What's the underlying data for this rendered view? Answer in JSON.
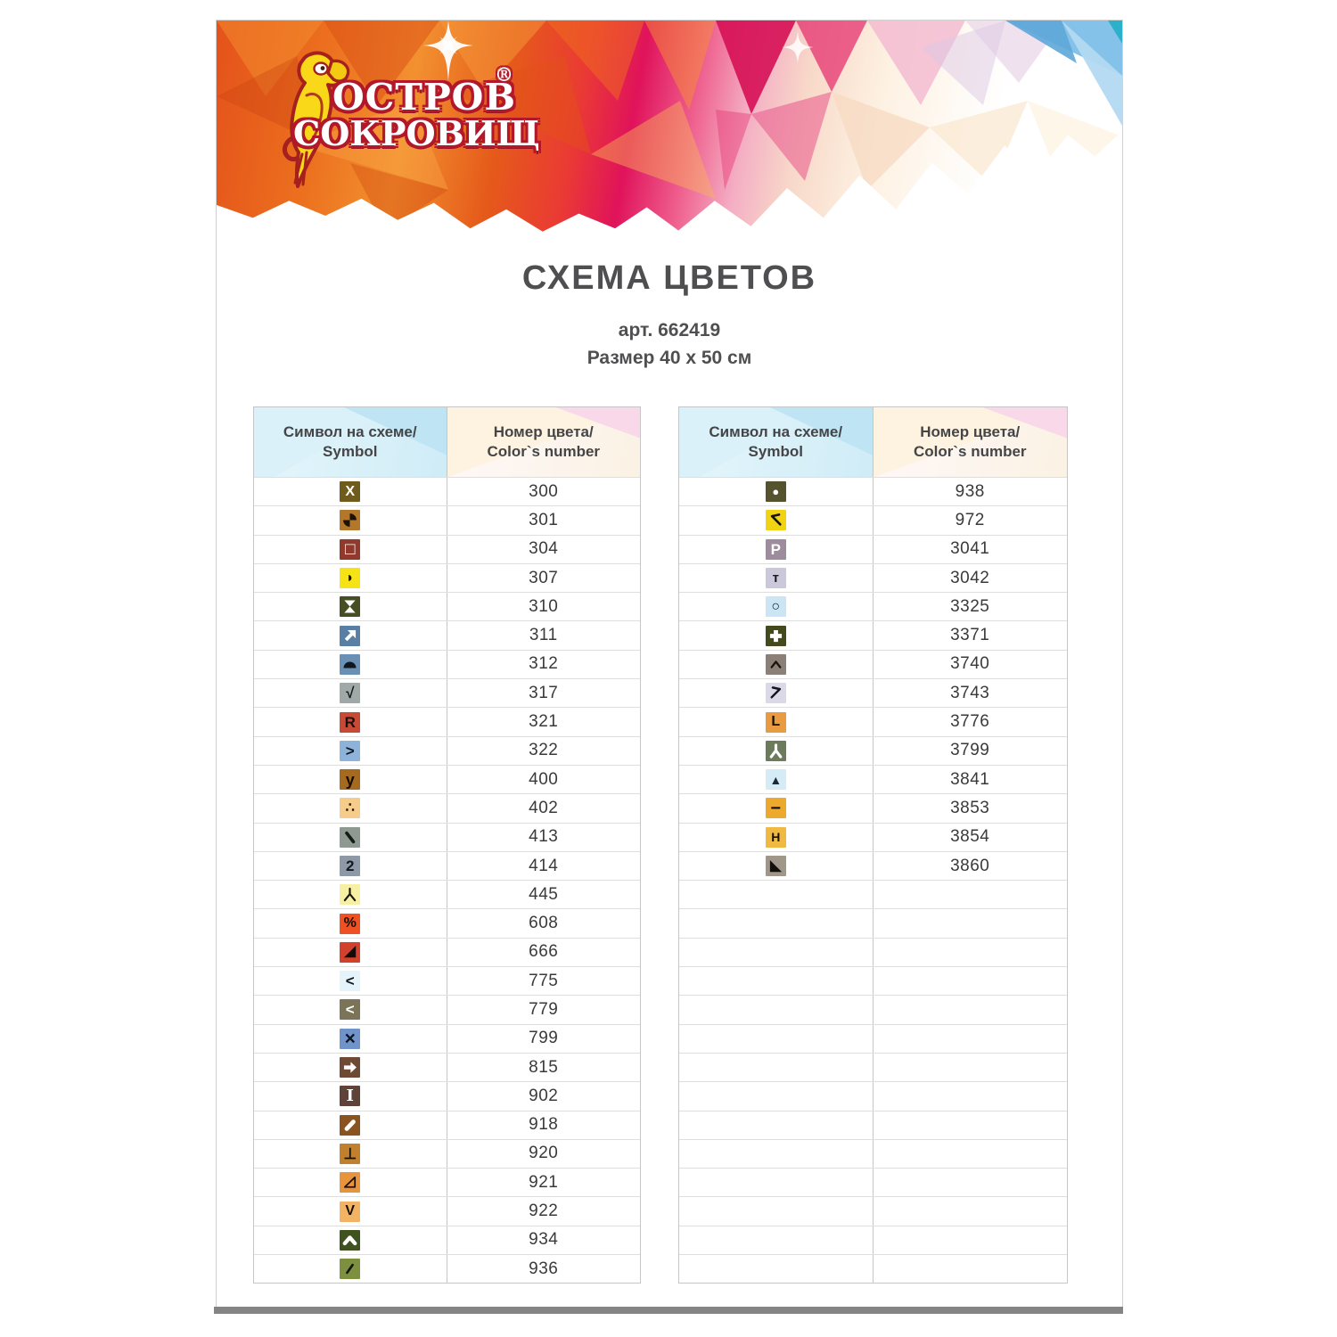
{
  "brand": {
    "name_line1": "ОСТРОВ",
    "name_line2": "СОКРОВИЩ",
    "reg_mark": "®",
    "logo_icon": "parrot-icon",
    "colors": {
      "orange": "#ec6f1e",
      "magenta": "#e0135b",
      "blue": "#85c2e9",
      "parrot_yellow": "#f8d818",
      "outline_red": "#b2182a"
    }
  },
  "page": {
    "title": "СХЕМА ЦВЕТОВ",
    "article": "арт. 662419",
    "size": "Размер 40 x 50 см"
  },
  "table_header": {
    "symbol": {
      "line1": "Символ на схеме/",
      "line2": "Symbol"
    },
    "number": {
      "line1": "Номер цвета/",
      "line2": "Color`s number"
    }
  },
  "tables": {
    "left": {
      "rows": [
        {
          "number": "300",
          "symbol": {
            "icon": "x-mark",
            "render": "text",
            "glyph": "X",
            "fg": "#ffffff",
            "bg": "#6f5c1d"
          }
        },
        {
          "number": "301",
          "symbol": {
            "icon": "pinwheel",
            "render": "svg",
            "shape": "pinwheel",
            "fg": "#1c1206",
            "bg": "#b3772c"
          }
        },
        {
          "number": "304",
          "symbol": {
            "icon": "square-outline",
            "render": "text",
            "glyph": "□",
            "fg": "#ffffff",
            "bg": "#92392e"
          }
        },
        {
          "number": "307",
          "symbol": {
            "icon": "half-circle-right",
            "render": "text",
            "glyph": "◗",
            "fg": "#181407",
            "bg": "#f5e316"
          }
        },
        {
          "number": "310",
          "symbol": {
            "icon": "hourglass",
            "render": "svg",
            "shape": "hourglass",
            "fg": "#ffffff",
            "bg": "#474e24"
          }
        },
        {
          "number": "311",
          "symbol": {
            "icon": "arrow-up-right",
            "render": "svg",
            "shape": "arrow-ne-solid",
            "fg": "#ffffff",
            "bg": "#597fa4"
          }
        },
        {
          "number": "312",
          "symbol": {
            "icon": "half-circle-up",
            "render": "svg",
            "shape": "dome",
            "fg": "#10181d",
            "bg": "#6a90b4"
          }
        },
        {
          "number": "317",
          "symbol": {
            "icon": "check-mark",
            "render": "text",
            "glyph": "√",
            "fg": "#14181a",
            "bg": "#a0a8a8"
          }
        },
        {
          "number": "321",
          "symbol": {
            "icon": "letter-r",
            "render": "text",
            "glyph": "R",
            "fg": "#1c0f0c",
            "bg": "#c64a36"
          }
        },
        {
          "number": "322",
          "symbol": {
            "icon": "chevron-right",
            "render": "text",
            "glyph": ">",
            "fg": "#10151c",
            "bg": "#8db3da"
          }
        },
        {
          "number": "400",
          "symbol": {
            "icon": "letter-y",
            "render": "text",
            "glyph": "y",
            "fg": "#140d04",
            "bg": "#a5691f"
          }
        },
        {
          "number": "402",
          "symbol": {
            "icon": "three-dots",
            "render": "text",
            "glyph": "∴",
            "fg": "#1a1208",
            "bg": "#f6cc8a"
          }
        },
        {
          "number": "413",
          "symbol": {
            "icon": "backslash",
            "render": "svg",
            "shape": "stroke-backslash",
            "fg": "#151a16",
            "bg": "#8e9a91"
          }
        },
        {
          "number": "414",
          "symbol": {
            "icon": "digit-2",
            "render": "text",
            "glyph": "2",
            "fg": "#131820",
            "bg": "#8d99a6"
          }
        },
        {
          "number": "445",
          "symbol": {
            "icon": "fork-down",
            "render": "svg",
            "shape": "fork-down",
            "fg": "#17160a",
            "bg": "#f7f0a2"
          }
        },
        {
          "number": "608",
          "symbol": {
            "icon": "percent",
            "render": "text",
            "glyph": "%",
            "fg": "#1c0d05",
            "bg": "#ee5222"
          }
        },
        {
          "number": "666",
          "symbol": {
            "icon": "triangle-lower-right",
            "render": "text",
            "glyph": "◢",
            "fg": "#160a07",
            "bg": "#d2412c"
          }
        },
        {
          "number": "775",
          "symbol": {
            "icon": "chevron-left",
            "render": "text",
            "glyph": "<",
            "fg": "#10161a",
            "bg": "#e4f4fa"
          }
        },
        {
          "number": "779",
          "symbol": {
            "icon": "chevron-left-white",
            "render": "text",
            "glyph": "<",
            "fg": "#ffffff",
            "bg": "#7b7457"
          }
        },
        {
          "number": "799",
          "symbol": {
            "icon": "multiply",
            "render": "text",
            "glyph": "×",
            "fg": "#0f1420",
            "bg": "#7094ca"
          }
        },
        {
          "number": "815",
          "symbol": {
            "icon": "arrow-right",
            "render": "svg",
            "shape": "arrow-right-solid",
            "fg": "#ffffff",
            "bg": "#6e4a35"
          }
        },
        {
          "number": "902",
          "symbol": {
            "icon": "i-beam",
            "render": "text",
            "glyph": "I",
            "fg": "#ffffff",
            "bg": "#5f4339",
            "serif": true
          }
        },
        {
          "number": "918",
          "symbol": {
            "icon": "slash-white",
            "render": "svg",
            "shape": "stroke-slash-thick",
            "fg": "#ffffff",
            "bg": "#8a5421"
          }
        },
        {
          "number": "920",
          "symbol": {
            "icon": "perpendicular",
            "render": "text",
            "glyph": "⊥",
            "fg": "#161007",
            "bg": "#c1802d"
          }
        },
        {
          "number": "921",
          "symbol": {
            "icon": "triangle-open",
            "render": "svg",
            "shape": "triangle-outline",
            "fg": "#1c1208",
            "bg": "#e7943c"
          }
        },
        {
          "number": "922",
          "symbol": {
            "icon": "letter-v",
            "render": "text",
            "glyph": "V",
            "fg": "#1a1106",
            "bg": "#f2b464"
          }
        },
        {
          "number": "934",
          "symbol": {
            "icon": "chevron-up-thick",
            "render": "svg",
            "shape": "chevron-up-thick",
            "fg": "#ffffff",
            "bg": "#3f5220"
          }
        },
        {
          "number": "936",
          "symbol": {
            "icon": "slash",
            "render": "svg",
            "shape": "stroke-slash-thin",
            "fg": "#11150a",
            "bg": "#7d9040"
          }
        }
      ]
    },
    "right": {
      "rows": [
        {
          "number": "938",
          "symbol": {
            "icon": "filled-circle",
            "render": "text",
            "glyph": "●",
            "fg": "#ffffff",
            "bg": "#55532d"
          }
        },
        {
          "number": "972",
          "symbol": {
            "icon": "arrow-up-left",
            "render": "svg",
            "shape": "arrow-nw-open",
            "fg": "#181304",
            "bg": "#f1d313"
          }
        },
        {
          "number": "3041",
          "symbol": {
            "icon": "letter-p",
            "render": "text",
            "glyph": "P",
            "fg": "#ffffff",
            "bg": "#9c8c9d"
          }
        },
        {
          "number": "3042",
          "symbol": {
            "icon": "letter-t",
            "render": "text",
            "glyph": "т",
            "fg": "#1b1b22",
            "bg": "#cac8da"
          }
        },
        {
          "number": "3325",
          "symbol": {
            "icon": "circle-outline",
            "render": "text",
            "glyph": "○",
            "fg": "#14181c",
            "bg": "#cae6f4"
          }
        },
        {
          "number": "3371",
          "symbol": {
            "icon": "plus-thick",
            "render": "svg",
            "shape": "plus-thick",
            "fg": "#ffffff",
            "bg": "#454a1e"
          }
        },
        {
          "number": "3740",
          "symbol": {
            "icon": "caret-up",
            "render": "svg",
            "shape": "chevron-up-small",
            "fg": "#17130e",
            "bg": "#8a8077"
          }
        },
        {
          "number": "3743",
          "symbol": {
            "icon": "arrow-up-right-open",
            "render": "svg",
            "shape": "arrow-ne-open",
            "fg": "#15131e",
            "bg": "#dbd9e8"
          }
        },
        {
          "number": "3776",
          "symbol": {
            "icon": "letter-l",
            "render": "text",
            "glyph": "L",
            "fg": "#170f05",
            "bg": "#e89b40"
          }
        },
        {
          "number": "3799",
          "symbol": {
            "icon": "fork-down-white",
            "render": "svg",
            "shape": "fork-down-thick",
            "fg": "#ffffff",
            "bg": "#6d7b5d"
          }
        },
        {
          "number": "3841",
          "symbol": {
            "icon": "triangle-up",
            "render": "text",
            "glyph": "▲",
            "fg": "#1c2a33",
            "bg": "#d5ecf7"
          }
        },
        {
          "number": "3853",
          "symbol": {
            "icon": "minus",
            "render": "text",
            "glyph": "−",
            "fg": "#171006",
            "bg": "#eca92e"
          }
        },
        {
          "number": "3854",
          "symbol": {
            "icon": "letter-h",
            "render": "text",
            "glyph": "H",
            "fg": "#171105",
            "bg": "#f0ba42"
          }
        },
        {
          "number": "3860",
          "symbol": {
            "icon": "triangle-lower-left",
            "render": "text",
            "glyph": "◣",
            "fg": "#12100c",
            "bg": "#a0978a"
          }
        }
      ],
      "empty_rows": 14
    }
  }
}
